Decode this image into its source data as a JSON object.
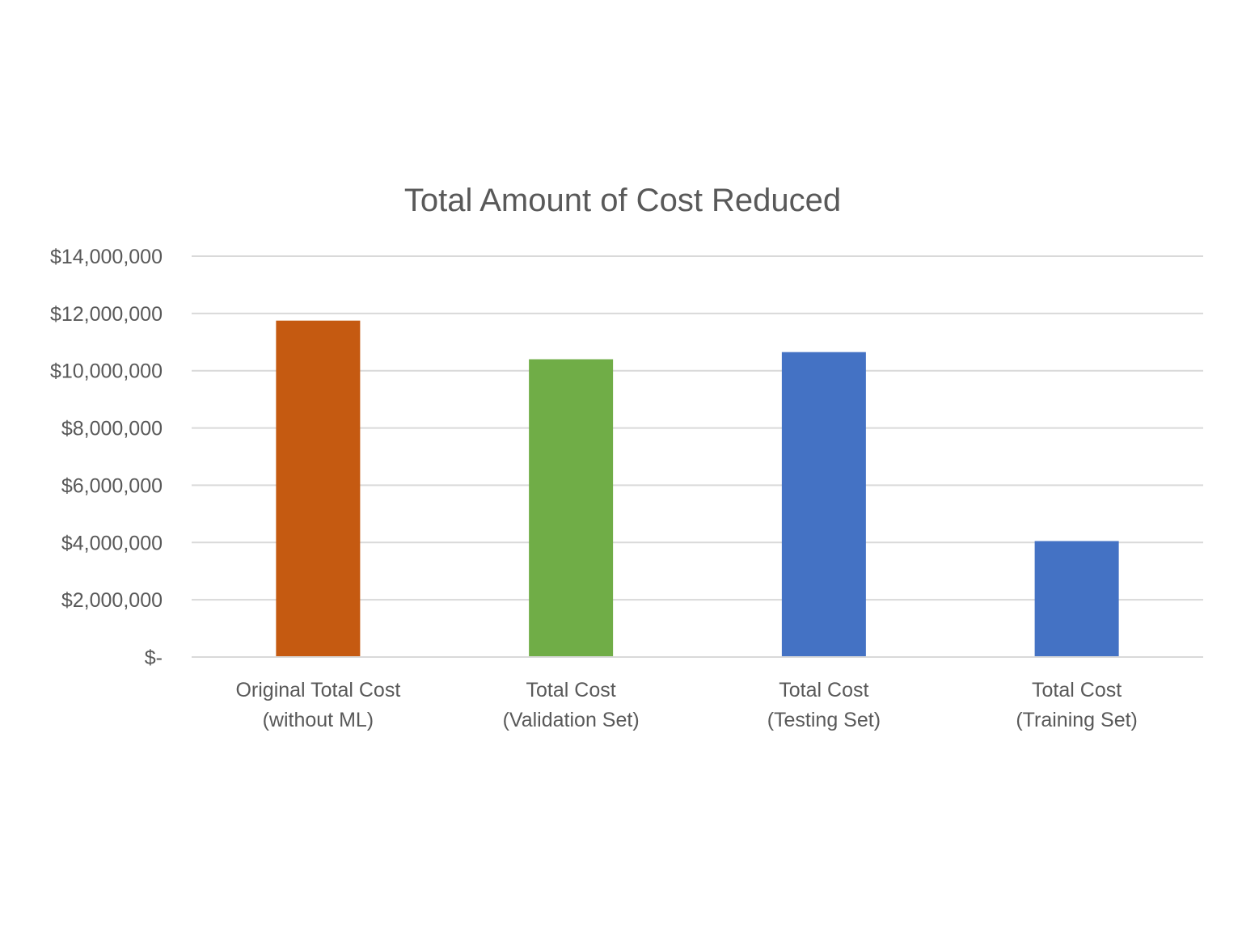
{
  "chart_data": {
    "type": "bar",
    "title": "Total Amount of Cost Reduced",
    "xlabel": "",
    "ylabel": "",
    "ylim": [
      0,
      14000000
    ],
    "grid": true,
    "legend": "none",
    "y_ticks": [
      0,
      2000000,
      4000000,
      6000000,
      8000000,
      10000000,
      12000000,
      14000000
    ],
    "y_tick_labels": [
      "$-",
      "$2,000,000",
      "$4,000,000",
      "$6,000,000",
      "$8,000,000",
      "$10,000,000",
      "$12,000,000",
      "$14,000,000"
    ],
    "categories": [
      [
        "Original Total Cost",
        "(without ML)"
      ],
      [
        "Total Cost",
        "(Validation Set)"
      ],
      [
        "Total Cost",
        "(Testing Set)"
      ],
      [
        "Total Cost",
        "(Training Set)"
      ]
    ],
    "values": [
      11750000,
      10400000,
      10650000,
      4050000
    ],
    "bar_colors": [
      "#c55a11",
      "#70ad47",
      "#4472c4",
      "#4472c4"
    ]
  },
  "colors": {
    "text": "#595959",
    "grid": "#d9d9d9",
    "background": "#ffffff"
  }
}
